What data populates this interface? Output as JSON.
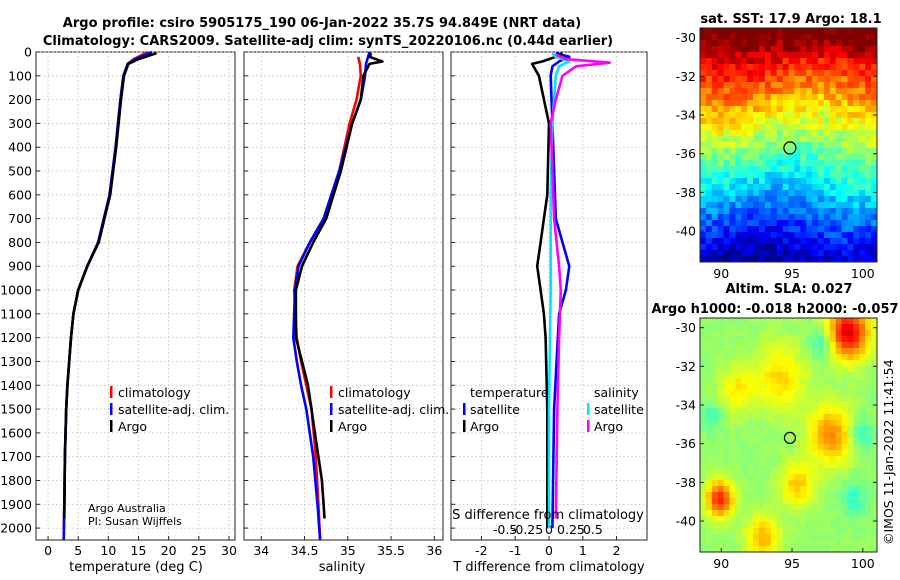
{
  "title_line1": "Argo profile: csiro 5905175_190 06-Jan-2022 35.7S 94.849E (NRT data)",
  "title_line2": "Climatology: CARS2009. Satellite-adj clim: synTS_20220106.nc (0.44d earlier)",
  "credits": {
    "org": "Argo Australia",
    "pi": "PI: Susan Wijffels"
  },
  "watermark": "©IMOS 11-Jan-2022 11:41:54",
  "colors": {
    "climatology": "#ff0000",
    "satellite_adj": "#0000ff",
    "argo": "#000000",
    "satellite": "#00e5ff",
    "argo_magenta": "#ff00ff"
  },
  "legend_main": [
    "climatology",
    "satellite-adj. clim.",
    "Argo"
  ],
  "legend_diff": {
    "temperature_header": "temperature",
    "salinity_header": "salinity",
    "temp_items": [
      "satellite",
      "Argo"
    ],
    "sal_items": [
      "satellite",
      "Argo"
    ]
  },
  "depth_ticks": [
    0,
    100,
    200,
    300,
    400,
    500,
    600,
    700,
    800,
    900,
    1000,
    1100,
    1200,
    1300,
    1400,
    1500,
    1600,
    1700,
    1800,
    1900,
    2000
  ],
  "map_sst": {
    "title": "sat. SST: 17.9 Argo: 18.1",
    "lat_ticks": [
      -30,
      -32,
      -34,
      -36,
      -38,
      -40
    ],
    "lon_ticks": [
      90,
      95,
      100
    ],
    "argo_lon": 94.849,
    "argo_lat": -35.7
  },
  "map_sla": {
    "title1": "Altim. SLA: 0.027",
    "title2": "Argo h1000: -0.018 h2000: -0.057",
    "lat_ticks": [
      -30,
      -32,
      -34,
      -36,
      -38,
      -40
    ],
    "lon_ticks": [
      90,
      95,
      100
    ],
    "argo_lon": 94.849,
    "argo_lat": -35.7
  },
  "chart_data": [
    {
      "type": "line",
      "title": "",
      "xlabel": "temperature (deg C)",
      "ylabel": "",
      "xlim": [
        -2,
        31
      ],
      "ylim": [
        2050,
        0
      ],
      "xticks": [
        0,
        5,
        10,
        15,
        20,
        25,
        30
      ],
      "series": [
        {
          "name": "climatology",
          "color": "#ff0000",
          "x": [
            2.6,
            2.7,
            2.8,
            3.0,
            3.2,
            3.5,
            3.8,
            4.2,
            5.0,
            6.5,
            8.3,
            10.2,
            11.2,
            12.0,
            12.5,
            13.2,
            14.2,
            16.5
          ],
          "y": [
            2050,
            1900,
            1700,
            1500,
            1400,
            1300,
            1200,
            1100,
            1000,
            900,
            800,
            600,
            400,
            200,
            100,
            50,
            30,
            0
          ]
        },
        {
          "name": "satellite-adj. clim.",
          "color": "#0000ff",
          "x": [
            2.6,
            2.7,
            2.8,
            3.0,
            3.2,
            3.5,
            3.8,
            4.2,
            5.0,
            6.5,
            8.3,
            10.2,
            11.2,
            12.0,
            12.5,
            13.2,
            14.5,
            17.2
          ],
          "y": [
            2050,
            1900,
            1700,
            1500,
            1400,
            1300,
            1200,
            1100,
            1000,
            900,
            800,
            600,
            400,
            200,
            100,
            50,
            30,
            0
          ]
        },
        {
          "name": "Argo",
          "color": "#000000",
          "x": [
            2.7,
            2.8,
            3.0,
            3.2,
            3.5,
            3.8,
            4.2,
            5.0,
            6.5,
            8.4,
            10.3,
            11.3,
            12.1,
            12.6,
            13.3,
            15.0,
            18.0
          ],
          "y": [
            1960,
            1700,
            1500,
            1400,
            1300,
            1200,
            1100,
            1000,
            900,
            800,
            600,
            400,
            200,
            100,
            50,
            30,
            5
          ]
        }
      ]
    },
    {
      "type": "line",
      "title": "",
      "xlabel": "salinity",
      "ylabel": "",
      "xlim": [
        33.8,
        36.1
      ],
      "ylim": [
        2050,
        0
      ],
      "xticks": [
        34,
        34.5,
        35,
        35.5,
        36
      ],
      "series": [
        {
          "name": "climatology",
          "color": "#ff0000",
          "x": [
            34.68,
            34.66,
            34.63,
            34.58,
            34.52,
            34.46,
            34.41,
            34.38,
            34.42,
            34.56,
            34.72,
            34.9,
            35.02,
            35.1,
            35.15,
            35.14,
            35.12
          ],
          "y": [
            2050,
            1900,
            1700,
            1500,
            1400,
            1300,
            1200,
            1000,
            900,
            800,
            700,
            500,
            300,
            200,
            100,
            50,
            20
          ]
        },
        {
          "name": "satellite-adj. clim.",
          "color": "#0000ff",
          "x": [
            34.68,
            34.65,
            34.6,
            34.52,
            34.46,
            34.41,
            34.37,
            34.39,
            34.43,
            34.56,
            34.72,
            34.9,
            35.05,
            35.15,
            35.2,
            35.21,
            35.25
          ],
          "y": [
            2050,
            1900,
            1700,
            1500,
            1400,
            1300,
            1200,
            1000,
            900,
            800,
            700,
            500,
            300,
            200,
            100,
            50,
            0
          ]
        },
        {
          "name": "Argo",
          "color": "#000000",
          "x": [
            34.73,
            34.72,
            34.7,
            34.66,
            34.62,
            34.58,
            34.54,
            34.47,
            34.4,
            34.4,
            34.47,
            34.6,
            34.75,
            34.92,
            35.05,
            35.15,
            35.18,
            35.25,
            35.4,
            35.25,
            35.27
          ],
          "y": [
            1960,
            1900,
            1800,
            1700,
            1600,
            1500,
            1400,
            1300,
            1200,
            1000,
            900,
            800,
            700,
            500,
            300,
            200,
            100,
            50,
            40,
            20,
            5
          ]
        }
      ]
    },
    {
      "type": "line",
      "title": "",
      "xlabel": "T difference from climatology",
      "ylabel": "",
      "xlim": [
        -2.9,
        2.9
      ],
      "ylim": [
        2050,
        0
      ],
      "xticks": [
        -2,
        -1,
        0,
        1,
        2
      ],
      "x2label": "S difference from climatology",
      "x2ticks": [
        -0.5,
        -0.25,
        0,
        0.25,
        0.5
      ],
      "series": [
        {
          "name": "temperature satellite",
          "color": "#0000ff",
          "x": [
            0.1,
            0.15,
            0.3,
            0.5,
            0.6,
            0.4,
            0.2,
            0.15,
            0.1,
            0.05,
            0.1,
            0.3,
            0.6,
            0.2
          ],
          "y": [
            2000,
            1500,
            1100,
            1000,
            900,
            800,
            700,
            500,
            300,
            100,
            60,
            40,
            20,
            5
          ]
        },
        {
          "name": "temperature Argo",
          "color": "#000000",
          "x": [
            -0.05,
            -0.05,
            -0.1,
            -0.15,
            -0.25,
            -0.35,
            -0.25,
            -0.15,
            -0.05,
            0,
            -0.3,
            -0.5,
            -0.2,
            0.2,
            0.4
          ],
          "y": [
            2000,
            1500,
            1200,
            1100,
            1000,
            900,
            800,
            700,
            600,
            300,
            100,
            50,
            40,
            20,
            5
          ]
        },
        {
          "name": "salinity satellite",
          "color": "#00e5ff",
          "x": [
            0,
            0,
            0.05,
            0.05,
            0.1,
            0.15,
            0.2,
            0.3,
            0.6,
            0.2,
            0.1
          ],
          "y": [
            2000,
            1500,
            1000,
            600,
            300,
            200,
            100,
            60,
            40,
            20,
            5
          ]
        },
        {
          "name": "salinity Argo",
          "color": "#ff00ff",
          "x": [
            0.2,
            0.25,
            0.3,
            0.35,
            0.3,
            0.15,
            0.1,
            0.05,
            0.2,
            0.4,
            0.8,
            1.8,
            0.5,
            0.2
          ],
          "y": [
            1960,
            1500,
            1200,
            1000,
            900,
            700,
            500,
            300,
            200,
            100,
            60,
            45,
            30,
            10
          ]
        }
      ]
    }
  ]
}
